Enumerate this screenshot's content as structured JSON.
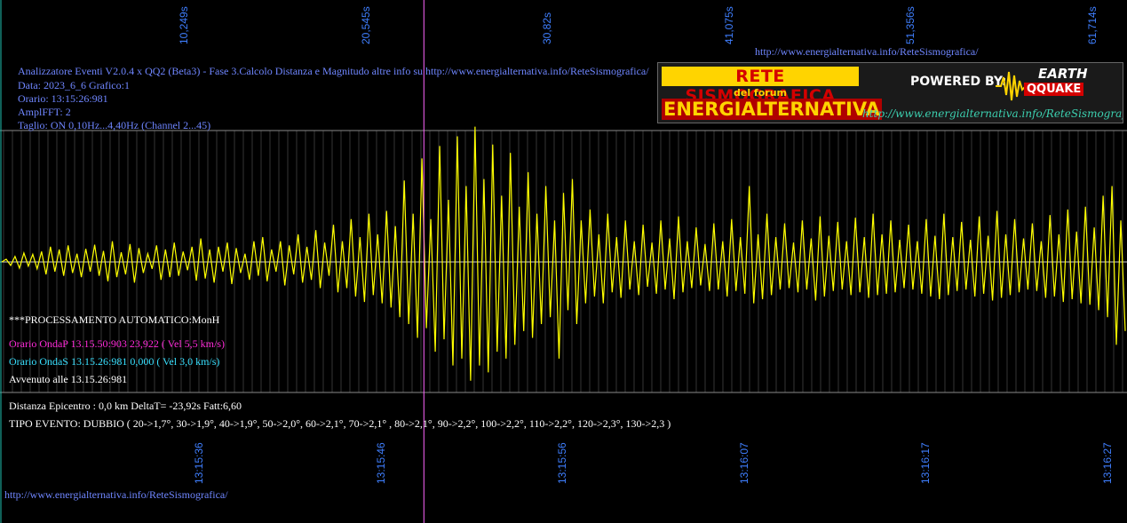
{
  "header": {
    "top_url": "http://www.energialternativa.info/ReteSismografica/",
    "bottom_url": "http://www.energialternativa.info/ReteSismografica/",
    "info_lines": [
      "Analizzatore Eventi V2.0.4 x QQ2 (Beta3) - Fase 3.Calcolo Distanza e Magnitudo altre info su http://www.energialternativa.info/ReteSismografica/",
      "Data: 2023_6_6 Grafico:1",
      "Orario: 13:15:26:981",
      "AmplFFT: 2",
      "Taglio: ON 0,10Hz...4,40Hz       (Channel 2...45)"
    ]
  },
  "banner": {
    "title": "RETE SISMOGRAFICA",
    "subtitle": "del forum",
    "name": "ENERGIALTERNATIVA",
    "powered_by": "POWERED BY:",
    "logo_top": "EARTH",
    "logo_bottom": "QQUAKE",
    "url": "http://www.energialternativa.info/ReteSismografica"
  },
  "processing": {
    "heading": "***PROCESSAMENTO AUTOMATICO:MonH",
    "onda_p": "Orario OndaP 13.15.50:903  23,922 ( Vel 5,5 km/s)",
    "onda_s": "Orario OndaS 13.15.26:981  0,000 ( Vel 3,0 km/s)",
    "avvenuto": "Avvenuto alle 13.15.26:981"
  },
  "result": {
    "distanza": "Distanza Epicentro : 0,0 km DeltaT= -23,92s  Fatt:6,60",
    "tipo": "TIPO EVENTO: DUBBIO ( 20->1,7°, 30->1,9°, 40->1,9°, 50->2,0°, 60->2,1°, 70->2,1° , 80->2,1°, 90->2,2°, 100->2,2°, 110->2,2°, 120->2,3°, 130->2,3 )"
  },
  "chart_data": {
    "type": "line",
    "top_axis_ticks": [
      "10,249s",
      "20,545s",
      "30,82s",
      "41,075s",
      "51,356s",
      "61,714s"
    ],
    "bottom_axis_ticks": [
      "13:15:36",
      "13:15:46",
      "13:15:56",
      "13:16:07",
      "13:16:17",
      "13:16:27"
    ],
    "colors": {
      "trace": "#ffff00",
      "marker": "#ff66ff",
      "grid": "#8a8a8a",
      "baseline": "#cfcfcf",
      "tick_text": "#3f7fff"
    },
    "x_range_s": [
      0,
      63.6
    ],
    "marker_s": 23.92,
    "grid": true,
    "series": [
      {
        "values": [
          0,
          4,
          -5,
          8,
          -9,
          13,
          -6,
          11,
          -10,
          15,
          -18,
          22,
          -14,
          18,
          -20,
          24,
          -16,
          12,
          -22,
          19,
          -14,
          25,
          -20,
          16,
          -28,
          30,
          -22,
          14,
          -18,
          26,
          -30,
          20,
          -16,
          12,
          -10,
          24,
          -26,
          18,
          -22,
          28,
          -20,
          15,
          -12,
          22,
          -27,
          34,
          -24,
          18,
          -30,
          22,
          -14,
          28,
          -32,
          20,
          -16,
          12,
          -26,
          30,
          -20,
          36,
          -28,
          18,
          -14,
          30,
          -34,
          24,
          -18,
          40,
          -30,
          22,
          -26,
          46,
          -38,
          28,
          -20,
          54,
          -44,
          30,
          -38,
          62,
          -50,
          36,
          -58,
          70,
          -48,
          40,
          -60,
          74,
          -66,
          52,
          -80,
          118,
          -90,
          70,
          -110,
          150,
          -96,
          62,
          -130,
          168,
          -112,
          90,
          -150,
          182,
          -140,
          110,
          -172,
          196,
          -150,
          120,
          -160,
          170,
          -130,
          96,
          -140,
          158,
          -120,
          80,
          -100,
          130,
          -110,
          70,
          -90,
          110,
          -80,
          60,
          -140,
          100,
          -70,
          120,
          -90,
          60,
          -60,
          76,
          -50,
          40,
          -60,
          70,
          -44,
          36,
          -52,
          60,
          -40,
          30,
          -48,
          54,
          -36,
          28,
          -46,
          60,
          -40,
          34,
          -54,
          66,
          -44,
          30,
          -38,
          50,
          -34,
          26,
          -42,
          56,
          -40,
          30,
          -50,
          62,
          -42,
          36,
          -46,
          110,
          -60,
          40,
          -54,
          70,
          -48,
          36,
          -40,
          56,
          -38,
          28,
          -44,
          60,
          -40,
          34,
          -56,
          66,
          -50,
          38,
          -42,
          58,
          -40,
          30,
          -48,
          64,
          -44,
          36,
          -52,
          70,
          -48,
          40,
          -46,
          60,
          -44,
          32,
          -38,
          54,
          -40,
          30,
          -46,
          62,
          -50,
          38,
          -54,
          70,
          -48,
          36,
          -42,
          58,
          -40,
          32,
          -50,
          66,
          -46,
          38,
          -56,
          74,
          -52,
          40,
          -48,
          62,
          -44,
          34,
          -40,
          56,
          -42,
          30,
          -52,
          68,
          -50,
          40,
          -58,
          76,
          -54,
          44,
          -60,
          80,
          -62,
          50,
          -70,
          96,
          -80,
          110,
          -120,
          60,
          -100
        ]
      }
    ],
    "y_range": [
      -200,
      200
    ]
  }
}
